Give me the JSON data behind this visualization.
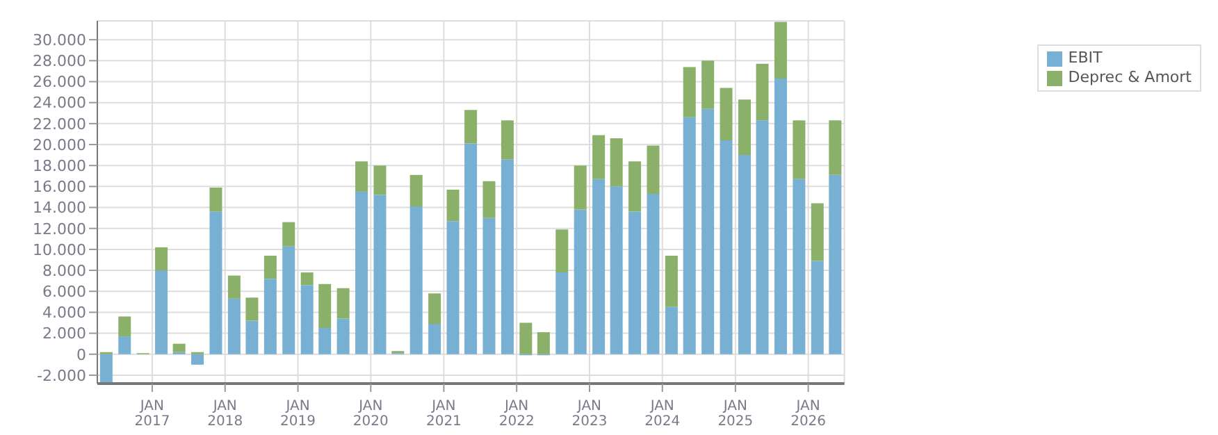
{
  "chart_data": {
    "type": "bar",
    "stacked": true,
    "x": [
      "2016-05-15",
      "2016-08-15",
      "2016-11-15",
      "2017-02-15",
      "2017-05-15",
      "2017-08-15",
      "2017-11-15",
      "2018-02-15",
      "2018-05-15",
      "2018-08-15",
      "2018-11-15",
      "2019-02-15",
      "2019-05-15",
      "2019-08-15",
      "2019-11-15",
      "2020-02-15",
      "2020-05-15",
      "2020-08-15",
      "2020-11-15",
      "2021-02-15",
      "2021-05-15",
      "2021-08-15",
      "2021-11-15",
      "2022-02-15",
      "2022-05-15",
      "2022-08-15",
      "2022-11-15",
      "2023-02-15",
      "2023-05-15",
      "2023-08-15",
      "2023-11-15",
      "2024-02-15",
      "2024-05-15",
      "2024-08-15",
      "2024-11-15",
      "2025-02-15",
      "2025-05-15",
      "2025-08-15",
      "2025-11-15",
      "2026-02-15",
      "2026-05-15"
    ],
    "series": [
      {
        "name": "EBIT",
        "color": "#77b0d3",
        "values": [
          -2800,
          1700,
          0,
          8000,
          200,
          -1000,
          13600,
          5300,
          3200,
          7200,
          10300,
          6600,
          2500,
          3400,
          15500,
          15200,
          100,
          14100,
          2900,
          12700,
          20100,
          13000,
          18600,
          -100,
          -100,
          7800,
          13800,
          16700,
          16000,
          13600,
          15300,
          4500,
          22600,
          23400,
          20400,
          19000,
          22300,
          26300,
          16700,
          8900,
          17100
        ]
      },
      {
        "name": "Deprec & Amort",
        "color": "#8ab06a",
        "values": [
          200,
          1900,
          100,
          2200,
          800,
          200,
          2300,
          2200,
          2200,
          2200,
          2300,
          1200,
          4200,
          2900,
          2900,
          2800,
          200,
          3000,
          2900,
          3000,
          3200,
          3500,
          3700,
          3000,
          2100,
          4100,
          4200,
          4200,
          4600,
          4800,
          4600,
          4900,
          4800,
          4600,
          5000,
          5300,
          5400,
          5400,
          5600,
          5500,
          5200
        ]
      }
    ],
    "xlim": [
      "2016-04-01",
      "2026-07-01"
    ],
    "xticks": [
      {
        "value": "2017-01-01",
        "label": "JAN\n2017"
      },
      {
        "value": "2018-01-01",
        "label": "JAN\n2018"
      },
      {
        "value": "2019-01-01",
        "label": "JAN\n2019"
      },
      {
        "value": "2020-01-01",
        "label": "JAN\n2020"
      },
      {
        "value": "2021-01-01",
        "label": "JAN\n2021"
      },
      {
        "value": "2022-01-01",
        "label": "JAN\n2022"
      },
      {
        "value": "2023-01-01",
        "label": "JAN\n2023"
      },
      {
        "value": "2024-01-01",
        "label": "JAN\n2024"
      },
      {
        "value": "2025-01-01",
        "label": "JAN\n2025"
      },
      {
        "value": "2026-01-01",
        "label": "JAN\n2026"
      }
    ],
    "ylim": [
      -2800,
      31800
    ],
    "yticks": [
      {
        "value": -2000,
        "label": "-2.000"
      },
      {
        "value": 0,
        "label": "0"
      },
      {
        "value": 2000,
        "label": "2.000"
      },
      {
        "value": 4000,
        "label": "4.000"
      },
      {
        "value": 6000,
        "label": "6.000"
      },
      {
        "value": 8000,
        "label": "8.000"
      },
      {
        "value": 10000,
        "label": "10.000"
      },
      {
        "value": 12000,
        "label": "12.000"
      },
      {
        "value": 14000,
        "label": "14.000"
      },
      {
        "value": 16000,
        "label": "16.000"
      },
      {
        "value": 18000,
        "label": "18.000"
      },
      {
        "value": 20000,
        "label": "20.000"
      },
      {
        "value": 22000,
        "label": "22.000"
      },
      {
        "value": 24000,
        "label": "24.000"
      },
      {
        "value": 26000,
        "label": "26.000"
      },
      {
        "value": 28000,
        "label": "28.000"
      },
      {
        "value": 30000,
        "label": "30.000"
      }
    ],
    "grid": true,
    "legend": "top right"
  }
}
